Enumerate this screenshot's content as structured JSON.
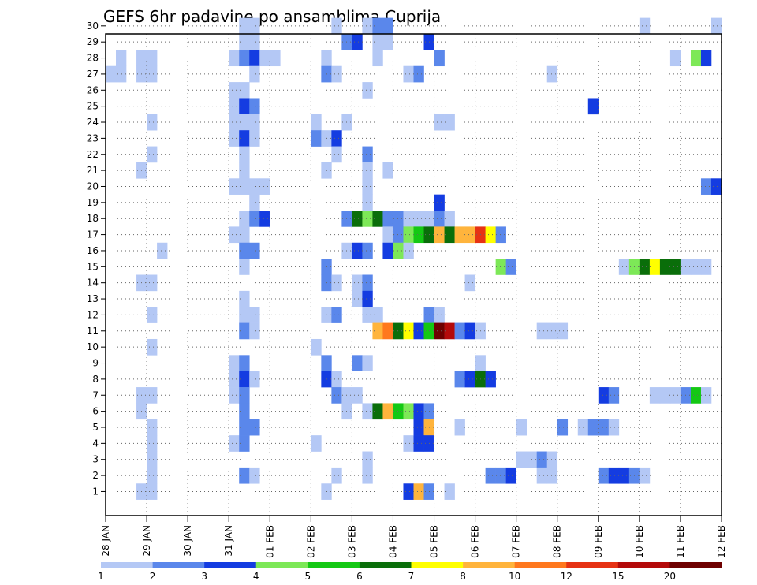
{
  "chart_data": {
    "type": "heatmap",
    "title": "GEFS 6hr padavine po ansamblima Cuprija",
    "xlabel": "",
    "ylabel": "",
    "x_tick_labels": [
      "28 JAN",
      "29 JAN",
      "30 JAN",
      "31 JAN",
      "01 FEB",
      "02 FEB",
      "03 FEB",
      "04 FEB",
      "05 FEB",
      "06 FEB",
      "07 FEB",
      "08 FEB",
      "09 FEB",
      "10 FEB",
      "11 FEB",
      "12 FEB"
    ],
    "y_tick_labels": [
      "1",
      "2",
      "3",
      "4",
      "5",
      "6",
      "7",
      "8",
      "9",
      "10",
      "11",
      "12",
      "13",
      "14",
      "15",
      "16",
      "17",
      "18",
      "19",
      "20",
      "21",
      "22",
      "23",
      "24",
      "25",
      "26",
      "27",
      "28",
      "29",
      "30"
    ],
    "xlim_days": [
      0,
      15
    ],
    "ylim_members": [
      0,
      30
    ],
    "grid": true,
    "colorbar": {
      "labels": [
        "1",
        "2",
        "3",
        "4",
        "5",
        "6",
        "7",
        "8",
        "10",
        "12",
        "15",
        "20"
      ],
      "colors": [
        "#b4c8f5",
        "#5a87eb",
        "#143ce1",
        "#7de857",
        "#14c814",
        "#0a6e0a",
        "#ffff00",
        "#ffb43c",
        "#ff781e",
        "#e63214",
        "#b40a0a",
        "#6e0000"
      ]
    },
    "cells": [
      {
        "m": 30,
        "d": 3.25,
        "c": 0
      },
      {
        "m": 30,
        "d": 3.5,
        "c": 0
      },
      {
        "m": 30,
        "d": 5.5,
        "c": 0
      },
      {
        "m": 30,
        "d": 6.25,
        "c": 0
      },
      {
        "m": 30,
        "d": 6.5,
        "c": 1
      },
      {
        "m": 30,
        "d": 6.75,
        "c": 1
      },
      {
        "m": 30,
        "d": 13,
        "c": 0
      },
      {
        "m": 30,
        "d": 14.75,
        "c": 0
      },
      {
        "m": 29,
        "d": 3.25,
        "c": 0
      },
      {
        "m": 29,
        "d": 3.5,
        "c": 0
      },
      {
        "m": 29,
        "d": 5.75,
        "c": 1
      },
      {
        "m": 29,
        "d": 6,
        "c": 2
      },
      {
        "m": 29,
        "d": 6.5,
        "c": 0
      },
      {
        "m": 29,
        "d": 6.75,
        "c": 0
      },
      {
        "m": 29,
        "d": 7.75,
        "c": 2
      },
      {
        "m": 28,
        "d": 0.25,
        "c": 0
      },
      {
        "m": 28,
        "d": 0.75,
        "c": 0
      },
      {
        "m": 28,
        "d": 1,
        "c": 0
      },
      {
        "m": 28,
        "d": 3,
        "c": 0
      },
      {
        "m": 28,
        "d": 3.25,
        "c": 1
      },
      {
        "m": 28,
        "d": 3.5,
        "c": 2
      },
      {
        "m": 28,
        "d": 3.75,
        "c": 0
      },
      {
        "m": 28,
        "d": 4,
        "c": 0
      },
      {
        "m": 28,
        "d": 5.25,
        "c": 0
      },
      {
        "m": 28,
        "d": 6.5,
        "c": 0
      },
      {
        "m": 28,
        "d": 8,
        "c": 1
      },
      {
        "m": 28,
        "d": 13.75,
        "c": 0
      },
      {
        "m": 28,
        "d": 14.25,
        "c": 3
      },
      {
        "m": 28,
        "d": 14.5,
        "c": 2
      },
      {
        "m": 27,
        "d": 0,
        "c": 0
      },
      {
        "m": 27,
        "d": 0.25,
        "c": 0
      },
      {
        "m": 27,
        "d": 0.75,
        "c": 0
      },
      {
        "m": 27,
        "d": 1,
        "c": 0
      },
      {
        "m": 27,
        "d": 3.5,
        "c": 0
      },
      {
        "m": 27,
        "d": 5.25,
        "c": 1
      },
      {
        "m": 27,
        "d": 5.5,
        "c": 0
      },
      {
        "m": 27,
        "d": 7.25,
        "c": 0
      },
      {
        "m": 27,
        "d": 7.5,
        "c": 1
      },
      {
        "m": 27,
        "d": 10.75,
        "c": 0
      },
      {
        "m": 26,
        "d": 3,
        "c": 0
      },
      {
        "m": 26,
        "d": 3.25,
        "c": 0
      },
      {
        "m": 26,
        "d": 6.25,
        "c": 0
      },
      {
        "m": 25,
        "d": 3,
        "c": 0
      },
      {
        "m": 25,
        "d": 3.25,
        "c": 2
      },
      {
        "m": 25,
        "d": 3.5,
        "c": 1
      },
      {
        "m": 25,
        "d": 11.75,
        "c": 2
      },
      {
        "m": 24,
        "d": 1,
        "c": 0
      },
      {
        "m": 24,
        "d": 3,
        "c": 0
      },
      {
        "m": 24,
        "d": 3.25,
        "c": 0
      },
      {
        "m": 24,
        "d": 3.5,
        "c": 0
      },
      {
        "m": 24,
        "d": 5,
        "c": 0
      },
      {
        "m": 24,
        "d": 5.75,
        "c": 0
      },
      {
        "m": 24,
        "d": 8,
        "c": 0
      },
      {
        "m": 24,
        "d": 8.25,
        "c": 0
      },
      {
        "m": 23,
        "d": 3,
        "c": 0
      },
      {
        "m": 23,
        "d": 3.25,
        "c": 2
      },
      {
        "m": 23,
        "d": 3.5,
        "c": 0
      },
      {
        "m": 23,
        "d": 5,
        "c": 1
      },
      {
        "m": 23,
        "d": 5.25,
        "c": 0
      },
      {
        "m": 23,
        "d": 5.5,
        "c": 2
      },
      {
        "m": 22,
        "d": 1,
        "c": 0
      },
      {
        "m": 22,
        "d": 3.25,
        "c": 0
      },
      {
        "m": 22,
        "d": 5.5,
        "c": 0
      },
      {
        "m": 22,
        "d": 6.25,
        "c": 1
      },
      {
        "m": 21,
        "d": 0.75,
        "c": 0
      },
      {
        "m": 21,
        "d": 3.25,
        "c": 0
      },
      {
        "m": 21,
        "d": 5.25,
        "c": 0
      },
      {
        "m": 21,
        "d": 6.25,
        "c": 0
      },
      {
        "m": 21,
        "d": 6.75,
        "c": 0
      },
      {
        "m": 20,
        "d": 3,
        "c": 0
      },
      {
        "m": 20,
        "d": 3.25,
        "c": 0
      },
      {
        "m": 20,
        "d": 3.5,
        "c": 0
      },
      {
        "m": 20,
        "d": 3.75,
        "c": 0
      },
      {
        "m": 20,
        "d": 6.25,
        "c": 0
      },
      {
        "m": 20,
        "d": 14.5,
        "c": 1
      },
      {
        "m": 20,
        "d": 14.75,
        "c": 2
      },
      {
        "m": 19,
        "d": 3.5,
        "c": 0
      },
      {
        "m": 19,
        "d": 6.25,
        "c": 0
      },
      {
        "m": 19,
        "d": 8,
        "c": 2
      },
      {
        "m": 18,
        "d": 3.25,
        "c": 0
      },
      {
        "m": 18,
        "d": 3.5,
        "c": 1
      },
      {
        "m": 18,
        "d": 3.75,
        "c": 2
      },
      {
        "m": 18,
        "d": 5.75,
        "c": 1
      },
      {
        "m": 18,
        "d": 6,
        "c": 5
      },
      {
        "m": 18,
        "d": 6.25,
        "c": 3
      },
      {
        "m": 18,
        "d": 6.5,
        "c": 5
      },
      {
        "m": 18,
        "d": 6.75,
        "c": 1
      },
      {
        "m": 18,
        "d": 7,
        "c": 1
      },
      {
        "m": 18,
        "d": 7.25,
        "c": 0
      },
      {
        "m": 18,
        "d": 7.5,
        "c": 0
      },
      {
        "m": 18,
        "d": 7.75,
        "c": 0
      },
      {
        "m": 18,
        "d": 8,
        "c": 1
      },
      {
        "m": 18,
        "d": 8.25,
        "c": 0
      },
      {
        "m": 17,
        "d": 3,
        "c": 0
      },
      {
        "m": 17,
        "d": 3.25,
        "c": 0
      },
      {
        "m": 17,
        "d": 6.75,
        "c": 0
      },
      {
        "m": 17,
        "d": 7,
        "c": 1
      },
      {
        "m": 17,
        "d": 7.25,
        "c": 3
      },
      {
        "m": 17,
        "d": 7.5,
        "c": 4
      },
      {
        "m": 17,
        "d": 7.75,
        "c": 5
      },
      {
        "m": 17,
        "d": 8,
        "c": 7
      },
      {
        "m": 17,
        "d": 8.25,
        "c": 5
      },
      {
        "m": 17,
        "d": 8.5,
        "c": 7
      },
      {
        "m": 17,
        "d": 8.75,
        "c": 7
      },
      {
        "m": 17,
        "d": 9,
        "c": 9
      },
      {
        "m": 17,
        "d": 9.25,
        "c": 6
      },
      {
        "m": 17,
        "d": 9.5,
        "c": 1
      },
      {
        "m": 16,
        "d": 1.25,
        "c": 0
      },
      {
        "m": 16,
        "d": 3.25,
        "c": 1
      },
      {
        "m": 16,
        "d": 3.5,
        "c": 1
      },
      {
        "m": 16,
        "d": 5.75,
        "c": 0
      },
      {
        "m": 16,
        "d": 6,
        "c": 2
      },
      {
        "m": 16,
        "d": 6.25,
        "c": 1
      },
      {
        "m": 16,
        "d": 6.75,
        "c": 2
      },
      {
        "m": 16,
        "d": 7,
        "c": 3
      },
      {
        "m": 16,
        "d": 7.25,
        "c": 0
      },
      {
        "m": 15,
        "d": 3.25,
        "c": 0
      },
      {
        "m": 15,
        "d": 5.25,
        "c": 1
      },
      {
        "m": 15,
        "d": 9.5,
        "c": 3
      },
      {
        "m": 15,
        "d": 9.75,
        "c": 1
      },
      {
        "m": 15,
        "d": 12.5,
        "c": 0
      },
      {
        "m": 15,
        "d": 12.75,
        "c": 3
      },
      {
        "m": 15,
        "d": 13,
        "c": 5
      },
      {
        "m": 15,
        "d": 13.25,
        "c": 6
      },
      {
        "m": 15,
        "d": 13.5,
        "c": 5
      },
      {
        "m": 15,
        "d": 13.75,
        "c": 5
      },
      {
        "m": 15,
        "d": 14,
        "c": 0
      },
      {
        "m": 15,
        "d": 14.25,
        "c": 0
      },
      {
        "m": 15,
        "d": 14.5,
        "c": 0
      },
      {
        "m": 14,
        "d": 0.75,
        "c": 0
      },
      {
        "m": 14,
        "d": 1,
        "c": 0
      },
      {
        "m": 14,
        "d": 5.25,
        "c": 1
      },
      {
        "m": 14,
        "d": 5.5,
        "c": 0
      },
      {
        "m": 14,
        "d": 6,
        "c": 0
      },
      {
        "m": 14,
        "d": 6.25,
        "c": 1
      },
      {
        "m": 14,
        "d": 8.75,
        "c": 0
      },
      {
        "m": 13,
        "d": 3.25,
        "c": 0
      },
      {
        "m": 13,
        "d": 6,
        "c": 0
      },
      {
        "m": 13,
        "d": 6.25,
        "c": 2
      },
      {
        "m": 12,
        "d": 3.25,
        "c": 0
      },
      {
        "m": 12,
        "d": 3.5,
        "c": 0
      },
      {
        "m": 12,
        "d": 1,
        "c": 0
      },
      {
        "m": 12,
        "d": 5.25,
        "c": 0
      },
      {
        "m": 12,
        "d": 5.5,
        "c": 1
      },
      {
        "m": 12,
        "d": 6.25,
        "c": 0
      },
      {
        "m": 12,
        "d": 6.5,
        "c": 0
      },
      {
        "m": 12,
        "d": 7.75,
        "c": 1
      },
      {
        "m": 12,
        "d": 8,
        "c": 0
      },
      {
        "m": 11,
        "d": 3.25,
        "c": 1
      },
      {
        "m": 11,
        "d": 3.5,
        "c": 0
      },
      {
        "m": 11,
        "d": 6.5,
        "c": 7
      },
      {
        "m": 11,
        "d": 6.75,
        "c": 8
      },
      {
        "m": 11,
        "d": 7,
        "c": 5
      },
      {
        "m": 11,
        "d": 7.25,
        "c": 6
      },
      {
        "m": 11,
        "d": 7.5,
        "c": 2
      },
      {
        "m": 11,
        "d": 7.75,
        "c": 4
      },
      {
        "m": 11,
        "d": 8,
        "c": 11
      },
      {
        "m": 11,
        "d": 8.25,
        "c": 10
      },
      {
        "m": 11,
        "d": 8.5,
        "c": 1
      },
      {
        "m": 11,
        "d": 8.75,
        "c": 2
      },
      {
        "m": 11,
        "d": 9,
        "c": 0
      },
      {
        "m": 11,
        "d": 10.5,
        "c": 0
      },
      {
        "m": 11,
        "d": 10.75,
        "c": 0
      },
      {
        "m": 11,
        "d": 11,
        "c": 0
      },
      {
        "m": 10,
        "d": 1,
        "c": 0
      },
      {
        "m": 10,
        "d": 5,
        "c": 0
      },
      {
        "m": 9,
        "d": 3,
        "c": 0
      },
      {
        "m": 9,
        "d": 3.25,
        "c": 1
      },
      {
        "m": 9,
        "d": 5.25,
        "c": 1
      },
      {
        "m": 9,
        "d": 6,
        "c": 1
      },
      {
        "m": 9,
        "d": 6.25,
        "c": 0
      },
      {
        "m": 9,
        "d": 9,
        "c": 0
      },
      {
        "m": 8,
        "d": 3,
        "c": 0
      },
      {
        "m": 8,
        "d": 3.25,
        "c": 2
      },
      {
        "m": 8,
        "d": 3.5,
        "c": 0
      },
      {
        "m": 8,
        "d": 5.25,
        "c": 2
      },
      {
        "m": 8,
        "d": 5.5,
        "c": 0
      },
      {
        "m": 8,
        "d": 8.5,
        "c": 1
      },
      {
        "m": 8,
        "d": 8.75,
        "c": 2
      },
      {
        "m": 8,
        "d": 9,
        "c": 5
      },
      {
        "m": 8,
        "d": 9.25,
        "c": 2
      },
      {
        "m": 7,
        "d": 0.75,
        "c": 0
      },
      {
        "m": 7,
        "d": 1,
        "c": 0
      },
      {
        "m": 7,
        "d": 3,
        "c": 0
      },
      {
        "m": 7,
        "d": 3.25,
        "c": 1
      },
      {
        "m": 7,
        "d": 5.5,
        "c": 1
      },
      {
        "m": 7,
        "d": 5.75,
        "c": 0
      },
      {
        "m": 7,
        "d": 6,
        "c": 0
      },
      {
        "m": 7,
        "d": 12,
        "c": 2
      },
      {
        "m": 7,
        "d": 12.25,
        "c": 1
      },
      {
        "m": 7,
        "d": 13.25,
        "c": 0
      },
      {
        "m": 7,
        "d": 13.5,
        "c": 0
      },
      {
        "m": 7,
        "d": 13.75,
        "c": 0
      },
      {
        "m": 7,
        "d": 14,
        "c": 1
      },
      {
        "m": 7,
        "d": 14.25,
        "c": 4
      },
      {
        "m": 7,
        "d": 14.5,
        "c": 0
      },
      {
        "m": 6,
        "d": 0.75,
        "c": 0
      },
      {
        "m": 6,
        "d": 3.25,
        "c": 1
      },
      {
        "m": 6,
        "d": 5.75,
        "c": 0
      },
      {
        "m": 6,
        "d": 6.25,
        "c": 0
      },
      {
        "m": 6,
        "d": 6.5,
        "c": 5
      },
      {
        "m": 6,
        "d": 6.75,
        "c": 7
      },
      {
        "m": 6,
        "d": 7,
        "c": 4
      },
      {
        "m": 6,
        "d": 7.25,
        "c": 3
      },
      {
        "m": 6,
        "d": 7.5,
        "c": 2
      },
      {
        "m": 6,
        "d": 7.75,
        "c": 1
      },
      {
        "m": 5,
        "d": 1,
        "c": 0
      },
      {
        "m": 5,
        "d": 3.25,
        "c": 1
      },
      {
        "m": 5,
        "d": 3.5,
        "c": 1
      },
      {
        "m": 5,
        "d": 7.5,
        "c": 2
      },
      {
        "m": 5,
        "d": 7.75,
        "c": 7
      },
      {
        "m": 5,
        "d": 8.5,
        "c": 0
      },
      {
        "m": 5,
        "d": 10,
        "c": 0
      },
      {
        "m": 5,
        "d": 11,
        "c": 1
      },
      {
        "m": 5,
        "d": 11.5,
        "c": 0
      },
      {
        "m": 5,
        "d": 11.75,
        "c": 1
      },
      {
        "m": 5,
        "d": 12,
        "c": 1
      },
      {
        "m": 5,
        "d": 12.25,
        "c": 0
      },
      {
        "m": 4,
        "d": 1,
        "c": 0
      },
      {
        "m": 4,
        "d": 3,
        "c": 0
      },
      {
        "m": 4,
        "d": 3.25,
        "c": 1
      },
      {
        "m": 4,
        "d": 5,
        "c": 0
      },
      {
        "m": 4,
        "d": 7.25,
        "c": 0
      },
      {
        "m": 4,
        "d": 7.5,
        "c": 2
      },
      {
        "m": 4,
        "d": 7.75,
        "c": 2
      },
      {
        "m": 3,
        "d": 1,
        "c": 0
      },
      {
        "m": 3,
        "d": 6.25,
        "c": 0
      },
      {
        "m": 3,
        "d": 10,
        "c": 0
      },
      {
        "m": 3,
        "d": 10.25,
        "c": 0
      },
      {
        "m": 3,
        "d": 10.5,
        "c": 1
      },
      {
        "m": 3,
        "d": 10.75,
        "c": 0
      },
      {
        "m": 2,
        "d": 1,
        "c": 0
      },
      {
        "m": 2,
        "d": 3.25,
        "c": 1
      },
      {
        "m": 2,
        "d": 3.5,
        "c": 0
      },
      {
        "m": 2,
        "d": 5.5,
        "c": 0
      },
      {
        "m": 2,
        "d": 6.25,
        "c": 0
      },
      {
        "m": 2,
        "d": 9.25,
        "c": 1
      },
      {
        "m": 2,
        "d": 9.5,
        "c": 1
      },
      {
        "m": 2,
        "d": 9.75,
        "c": 2
      },
      {
        "m": 2,
        "d": 10.5,
        "c": 0
      },
      {
        "m": 2,
        "d": 10.75,
        "c": 0
      },
      {
        "m": 2,
        "d": 12,
        "c": 1
      },
      {
        "m": 2,
        "d": 12.25,
        "c": 2
      },
      {
        "m": 2,
        "d": 12.5,
        "c": 2
      },
      {
        "m": 2,
        "d": 12.75,
        "c": 1
      },
      {
        "m": 2,
        "d": 13,
        "c": 0
      },
      {
        "m": 1,
        "d": 1,
        "c": 0
      },
      {
        "m": 1,
        "d": 0.75,
        "c": 0
      },
      {
        "m": 1,
        "d": 5.25,
        "c": 0
      },
      {
        "m": 1,
        "d": 7.25,
        "c": 2
      },
      {
        "m": 1,
        "d": 7.5,
        "c": 7
      },
      {
        "m": 1,
        "d": 7.75,
        "c": 1
      },
      {
        "m": 1,
        "d": 8.25,
        "c": 0
      }
    ]
  }
}
